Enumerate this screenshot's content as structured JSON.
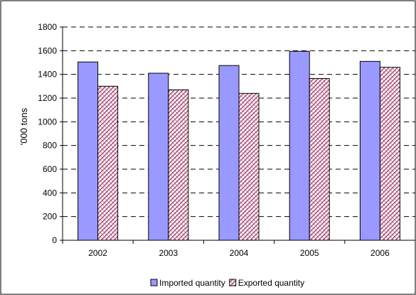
{
  "chart_data": {
    "type": "bar",
    "categories": [
      "2002",
      "2003",
      "2004",
      "2005",
      "2006"
    ],
    "series": [
      {
        "name": "Imported quantity",
        "values": [
          1505,
          1410,
          1475,
          1595,
          1510
        ],
        "color": "#9999ff",
        "pattern": "solid"
      },
      {
        "name": "Exported quantity",
        "values": [
          1300,
          1270,
          1240,
          1365,
          1460
        ],
        "color": "#993366",
        "pattern": "hatched"
      }
    ],
    "xlabel": "",
    "ylabel": "'000 tons",
    "ylim": [
      0,
      1800
    ],
    "yticks": [
      "0",
      "200",
      "400",
      "600",
      "800",
      "1000",
      "1200",
      "1400",
      "1600",
      "1800"
    ],
    "grid": "dashed horizontal",
    "legend": "bottom"
  }
}
